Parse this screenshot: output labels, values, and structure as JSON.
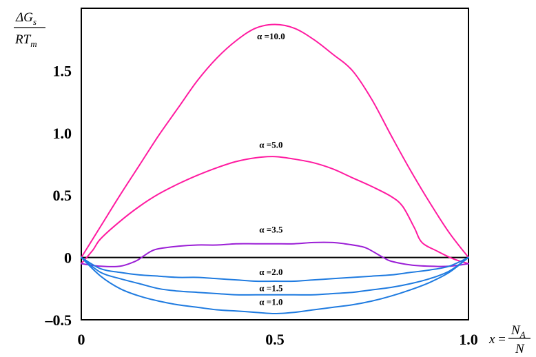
{
  "chart_data": {
    "type": "line",
    "ylabel": {
      "numerator": "ΔG",
      "numerator_sub": "s",
      "denominator": "RT",
      "denominator_sub": "m"
    },
    "xlabel": {
      "var": "x",
      "eq": "=",
      "numerator": "N",
      "numerator_sub": "A",
      "denominator": "N"
    },
    "xlim": [
      0,
      1.0
    ],
    "ylim": [
      -0.5,
      2.0
    ],
    "x_ticks": [
      {
        "v": 0,
        "label": "0"
      },
      {
        "v": 0.5,
        "label": "0.5"
      },
      {
        "v": 1.0,
        "label": "1.0"
      }
    ],
    "y_ticks": [
      {
        "v": 1.5,
        "label": "1.5"
      },
      {
        "v": 1.0,
        "label": "1.0"
      },
      {
        "v": 0.5,
        "label": "0.5"
      },
      {
        "v": 0,
        "label": "0"
      },
      {
        "v": -0.5,
        "label": "–0.5"
      }
    ],
    "zero_line": true,
    "grid": false,
    "series": [
      {
        "name": "α =10.0",
        "color": "#ff1aa0",
        "label_at": [
          0.49,
          1.75
        ],
        "x": [
          0,
          0.05,
          0.1,
          0.15,
          0.2,
          0.25,
          0.3,
          0.35,
          0.4,
          0.45,
          0.5,
          0.55,
          0.6,
          0.65,
          0.7,
          0.75,
          0.8,
          0.85,
          0.9,
          0.95,
          1.0
        ],
        "y": [
          0,
          0.25,
          0.5,
          0.74,
          0.98,
          1.2,
          1.42,
          1.6,
          1.74,
          1.84,
          1.87,
          1.84,
          1.75,
          1.63,
          1.5,
          1.27,
          0.98,
          0.7,
          0.44,
          0.2,
          0
        ]
      },
      {
        "name": "α =5.0",
        "color": "#ff1aa0",
        "label_at": [
          0.49,
          0.88
        ],
        "x": [
          0,
          0.03,
          0.05,
          0.1,
          0.15,
          0.2,
          0.25,
          0.3,
          0.35,
          0.4,
          0.45,
          0.5,
          0.55,
          0.6,
          0.65,
          0.7,
          0.75,
          0.8,
          0.83,
          0.86,
          0.88,
          0.92,
          0.96,
          1.0
        ],
        "y": [
          -0.05,
          0.06,
          0.15,
          0.29,
          0.41,
          0.51,
          0.59,
          0.66,
          0.72,
          0.77,
          0.8,
          0.81,
          0.79,
          0.76,
          0.71,
          0.64,
          0.57,
          0.49,
          0.41,
          0.24,
          0.12,
          0.05,
          -0.01,
          -0.05
        ]
      },
      {
        "name": "α =3.5",
        "color": "#9b1ed6",
        "label_at": [
          0.49,
          0.2
        ],
        "x": [
          0,
          0.05,
          0.1,
          0.14,
          0.16,
          0.18,
          0.2,
          0.25,
          0.3,
          0.35,
          0.4,
          0.45,
          0.5,
          0.55,
          0.6,
          0.65,
          0.68,
          0.72,
          0.74,
          0.78,
          0.8,
          0.85,
          0.9,
          0.95,
          1.0
        ],
        "y": [
          -0.05,
          -0.07,
          -0.07,
          -0.03,
          0.01,
          0.05,
          0.07,
          0.09,
          0.1,
          0.1,
          0.11,
          0.11,
          0.11,
          0.11,
          0.12,
          0.12,
          0.11,
          0.09,
          0.07,
          0.0,
          -0.03,
          -0.06,
          -0.07,
          -0.07,
          -0.05
        ]
      },
      {
        "name": "α =2.0",
        "color": "#1f7be0",
        "label_at": [
          0.49,
          -0.14
        ],
        "x": [
          0,
          0.05,
          0.1,
          0.15,
          0.2,
          0.25,
          0.3,
          0.35,
          0.4,
          0.45,
          0.5,
          0.55,
          0.6,
          0.65,
          0.7,
          0.75,
          0.8,
          0.85,
          0.9,
          0.95,
          1.0
        ],
        "y": [
          0,
          -0.09,
          -0.12,
          -0.14,
          -0.15,
          -0.16,
          -0.16,
          -0.17,
          -0.18,
          -0.19,
          -0.19,
          -0.19,
          -0.18,
          -0.17,
          -0.16,
          -0.15,
          -0.14,
          -0.12,
          -0.1,
          -0.07,
          0
        ]
      },
      {
        "name": "α =1.5",
        "color": "#1f7be0",
        "label_at": [
          0.49,
          -0.27
        ],
        "x": [
          0,
          0.05,
          0.1,
          0.15,
          0.2,
          0.25,
          0.3,
          0.35,
          0.4,
          0.45,
          0.5,
          0.55,
          0.6,
          0.65,
          0.7,
          0.75,
          0.8,
          0.85,
          0.9,
          0.95,
          1.0
        ],
        "y": [
          0,
          -0.12,
          -0.17,
          -0.21,
          -0.25,
          -0.27,
          -0.28,
          -0.29,
          -0.3,
          -0.3,
          -0.3,
          -0.3,
          -0.3,
          -0.29,
          -0.28,
          -0.26,
          -0.24,
          -0.21,
          -0.17,
          -0.11,
          0
        ]
      },
      {
        "name": "α =1.0",
        "color": "#1f7be0",
        "label_at": [
          0.49,
          -0.38
        ],
        "x": [
          0,
          0.05,
          0.1,
          0.15,
          0.2,
          0.25,
          0.3,
          0.35,
          0.4,
          0.45,
          0.5,
          0.55,
          0.6,
          0.65,
          0.7,
          0.75,
          0.8,
          0.85,
          0.9,
          0.95,
          1.0
        ],
        "y": [
          0,
          -0.15,
          -0.25,
          -0.31,
          -0.35,
          -0.38,
          -0.4,
          -0.42,
          -0.43,
          -0.44,
          -0.45,
          -0.44,
          -0.42,
          -0.4,
          -0.38,
          -0.35,
          -0.31,
          -0.26,
          -0.2,
          -0.12,
          0
        ]
      }
    ]
  }
}
